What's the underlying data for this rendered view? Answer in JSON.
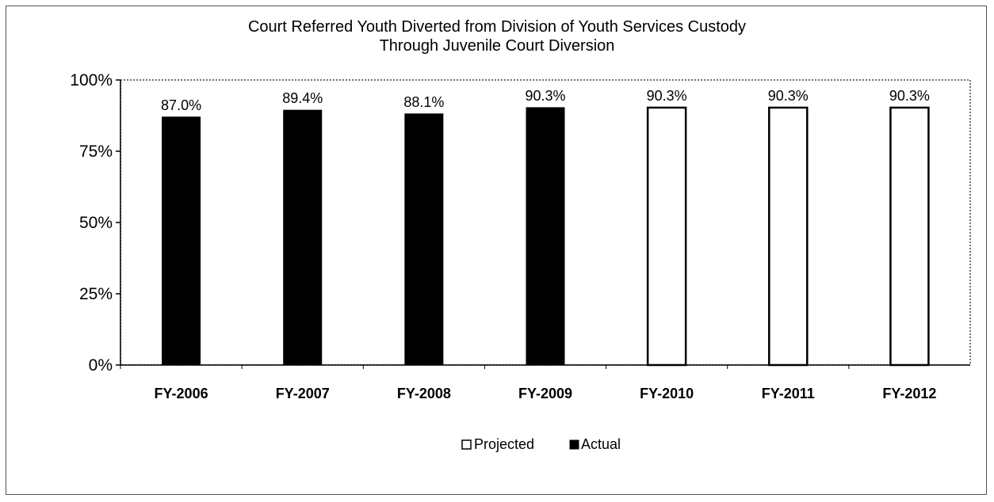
{
  "chart_data": {
    "type": "bar",
    "title_line1": "Court Referred Youth Diverted from Division of Youth Services Custody",
    "title_line2": "Through Juvenile Court Diversion",
    "categories": [
      "FY-2006",
      "FY-2007",
      "FY-2008",
      "FY-2009",
      "FY-2010",
      "FY-2011",
      "FY-2012"
    ],
    "series": [
      {
        "name": "Actual",
        "values": [
          87.0,
          89.4,
          88.1,
          90.3,
          null,
          null,
          null
        ],
        "color": "#000000"
      },
      {
        "name": "Projected",
        "values": [
          null,
          null,
          null,
          null,
          90.3,
          90.3,
          90.3
        ],
        "color": "#ffffff"
      }
    ],
    "data_labels": [
      "87.0%",
      "89.4%",
      "88.1%",
      "90.3%",
      "90.3%",
      "90.3%",
      "90.3%"
    ],
    "ylim": [
      0,
      100
    ],
    "yticks": [
      0,
      25,
      50,
      75,
      100
    ],
    "ytick_labels": [
      "0%",
      "25%",
      "50%",
      "75%",
      "100%"
    ],
    "legend": {
      "placement": "bottom-center",
      "entries": [
        "Projected",
        "Actual"
      ]
    },
    "grid": false,
    "xlabel": "",
    "ylabel": ""
  }
}
